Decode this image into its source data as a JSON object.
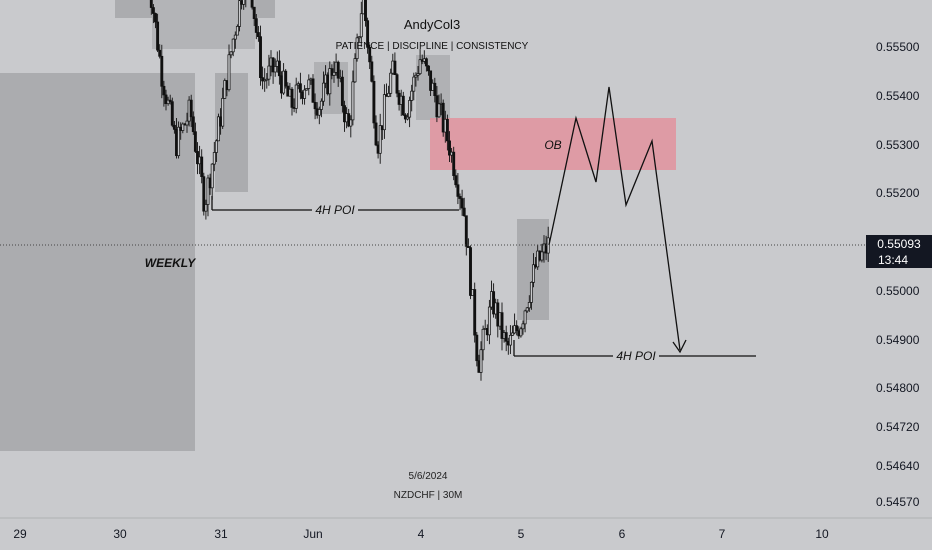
{
  "colors": {
    "background": "#c9cacd",
    "zone": "#a9aaad",
    "ob_zone": "#e8959f",
    "candle": "#111111",
    "price_tag_bg": "#131722",
    "price_tag_text": "#ffffff",
    "axis_bg": "#c9cacd"
  },
  "header": {
    "author": "AndyCol3",
    "tagline": "PATIENCE | DISCIPLINE | CONSISTENCY"
  },
  "footer": {
    "date": "5/6/2024",
    "symbol": "NZDCHF | 30M"
  },
  "annotations": {
    "weekly": "WEEKLY",
    "poi_upper": "4H POI",
    "poi_lower": "4H POI",
    "ob": "OB"
  },
  "price_tag": {
    "price": "0.55093",
    "countdown": "13:44"
  },
  "chart_data": {
    "type": "candlestick",
    "symbol": "NZDCHF",
    "timeframe": "30M",
    "y_axis": {
      "ticks": [
        "0.55500",
        "0.55400",
        "0.55300",
        "0.55200",
        "0.55000",
        "0.54900",
        "0.54800",
        "0.54720",
        "0.54640",
        "0.54570"
      ]
    },
    "x_axis": {
      "ticks": [
        "29",
        "30",
        "31",
        "Jun",
        "4",
        "5",
        "6",
        "7",
        "10"
      ]
    },
    "current_price": 0.55093,
    "price_path": [
      0.5567,
      0.5545,
      0.553,
      0.5537,
      0.5518,
      0.5534,
      0.5552,
      0.5568,
      0.5543,
      0.5546,
      0.5538,
      0.5543,
      0.5538,
      0.5547,
      0.5533,
      0.5561,
      0.553,
      0.5545,
      0.5537,
      0.5548,
      0.554,
      0.553,
      0.5517,
      0.5485,
      0.5498,
      0.5488,
      0.5494,
      0.5505,
      0.551
    ],
    "projection": [
      0.5509,
      0.5532,
      0.5522,
      0.5542,
      0.5516,
      0.553,
      0.5487
    ],
    "zones": [
      {
        "name": "weekly",
        "from": 0.5545,
        "to": 0.5467
      },
      {
        "name": "ob",
        "from": 0.55355,
        "to": 0.55255
      },
      {
        "name": "4H POI upper",
        "level": 0.55177
      },
      {
        "name": "4H POI lower",
        "level": 0.5487
      }
    ]
  }
}
